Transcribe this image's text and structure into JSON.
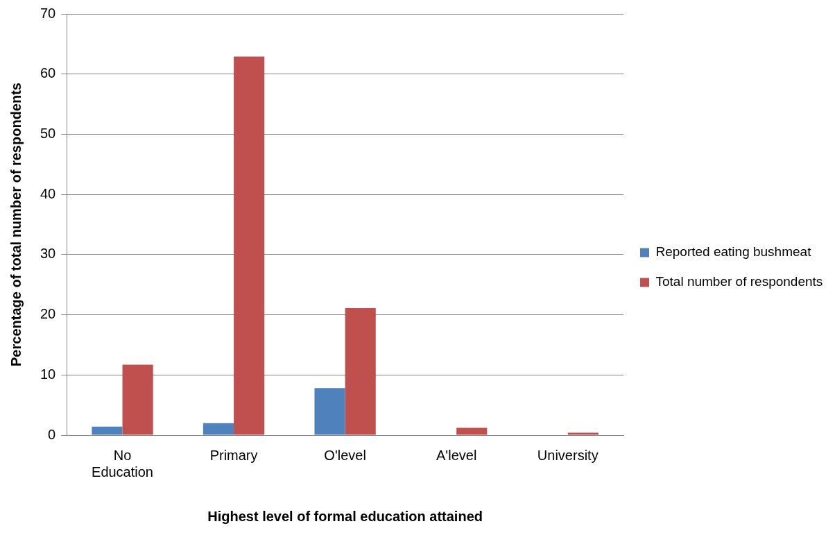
{
  "chart_data": {
    "type": "bar",
    "xlabel": "Highest level of formal education attained",
    "ylabel": "Percentage of total number of respondents",
    "categories": [
      "No Education",
      "Primary",
      "O'level",
      "A'level",
      "University"
    ],
    "series": [
      {
        "name": "Reported eating bushmeat",
        "color": "#4f81bd",
        "values": [
          1.4,
          2.0,
          7.8,
          0,
          0
        ]
      },
      {
        "name": "Total number of respondents",
        "color": "#c0504d",
        "values": [
          11.7,
          62.9,
          21.1,
          1.2,
          0.4
        ]
      }
    ],
    "ylim": [
      0,
      70
    ],
    "yticks": [
      0,
      10,
      20,
      30,
      40,
      50,
      60,
      70
    ],
    "grid": "y",
    "legend": "right"
  }
}
